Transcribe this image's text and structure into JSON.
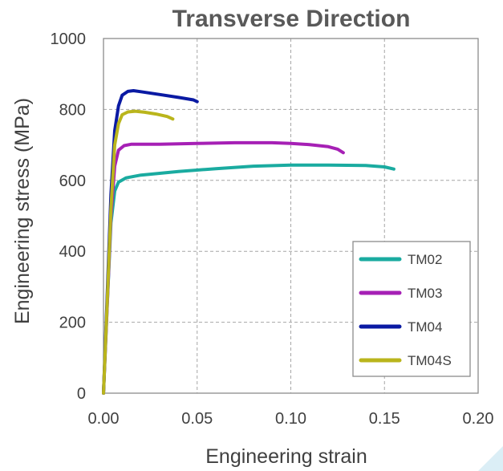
{
  "chart_data": {
    "type": "line",
    "title": "Transverse Direction",
    "xlabel": "Engineering strain",
    "ylabel": "Engineering stress (MPa)",
    "xlim": [
      0,
      0.2
    ],
    "ylim": [
      0,
      1000
    ],
    "xticks": [
      "0.00",
      "0.05",
      "0.10",
      "0.15",
      "0.20"
    ],
    "yticks": [
      "0",
      "200",
      "400",
      "600",
      "800",
      "1000"
    ],
    "grid": true,
    "legend_position": "bottom-right",
    "series": [
      {
        "name": "TM02",
        "color": "#1aaba0",
        "x": [
          0,
          0.002,
          0.004,
          0.006,
          0.008,
          0.012,
          0.02,
          0.04,
          0.06,
          0.08,
          0.1,
          0.12,
          0.14,
          0.15,
          0.155
        ],
        "y": [
          0,
          250,
          480,
          570,
          595,
          607,
          615,
          625,
          633,
          640,
          643,
          643,
          642,
          638,
          632
        ]
      },
      {
        "name": "TM03",
        "color": "#a620b5",
        "x": [
          0,
          0.002,
          0.004,
          0.006,
          0.008,
          0.011,
          0.015,
          0.03,
          0.05,
          0.07,
          0.09,
          0.1,
          0.11,
          0.12,
          0.125,
          0.128
        ],
        "y": [
          0,
          250,
          500,
          640,
          685,
          698,
          702,
          702,
          704,
          706,
          706,
          704,
          701,
          695,
          688,
          678
        ]
      },
      {
        "name": "TM04",
        "color": "#0a1aa3",
        "x": [
          0,
          0.002,
          0.004,
          0.006,
          0.008,
          0.01,
          0.013,
          0.016,
          0.02,
          0.03,
          0.04,
          0.048,
          0.05
        ],
        "y": [
          0,
          280,
          560,
          740,
          810,
          840,
          851,
          853,
          850,
          842,
          834,
          827,
          822
        ]
      },
      {
        "name": "TM04S",
        "color": "#bab51c",
        "x": [
          0,
          0.002,
          0.004,
          0.006,
          0.008,
          0.01,
          0.013,
          0.017,
          0.022,
          0.028,
          0.034,
          0.037
        ],
        "y": [
          0,
          260,
          520,
          700,
          760,
          785,
          793,
          795,
          792,
          787,
          780,
          773
        ]
      }
    ]
  }
}
